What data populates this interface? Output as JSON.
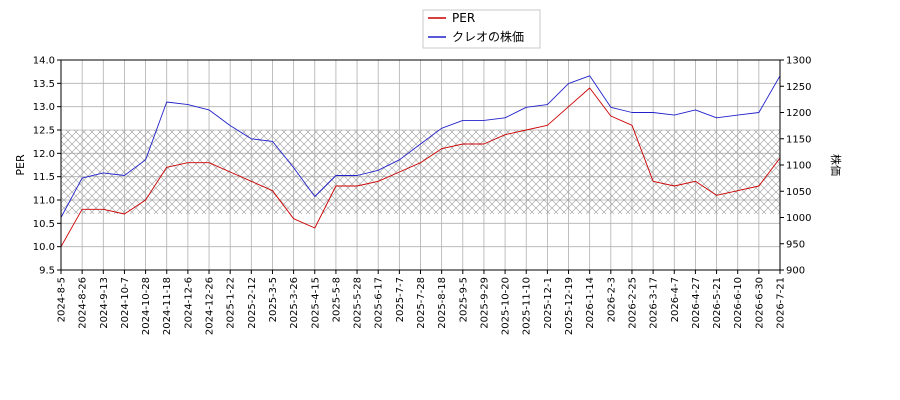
{
  "chart_data": {
    "type": "line",
    "title": "",
    "legend": {
      "placement": "top-center",
      "entries": [
        "PER",
        "クレオの株価"
      ]
    },
    "ylabel_left": "PER",
    "ylabel_right": "株価",
    "ylim_left": [
      9.5,
      14.0
    ],
    "ylim_right": [
      900,
      1300
    ],
    "yticks_left": [
      "9.5",
      "10.0",
      "10.5",
      "11.0",
      "11.5",
      "12.0",
      "12.5",
      "13.0",
      "13.5",
      "14.0"
    ],
    "yticks_right": [
      "900",
      "950",
      "1000",
      "1050",
      "1100",
      "1150",
      "1200",
      "1250",
      "1300"
    ],
    "x_ticks": [
      "2024-8-5",
      "2024-8-26",
      "2024-9-13",
      "2024-10-7",
      "2024-10-28",
      "2024-11-18",
      "2024-12-6",
      "2024-12-26",
      "2025-1-22",
      "2025-2-12",
      "2025-3-5",
      "2025-3-26",
      "2025-4-15",
      "2025-5-8",
      "2025-5-28",
      "2025-6-17",
      "2025-7-7",
      "2025-7-28",
      "2025-8-18",
      "2025-9-5",
      "2025-9-29",
      "2025-10-20",
      "2025-11-10",
      "2025-12-1",
      "2025-12-19",
      "2026-1-14",
      "2026-2-3",
      "2026-2-25",
      "2026-3-17",
      "2026-4-7",
      "2026-4-27",
      "2026-5-21",
      "2026-6-10",
      "2026-6-30",
      "2026-7-21"
    ],
    "band": {
      "axis": "left",
      "range": [
        10.7,
        12.5
      ],
      "pattern": "crosshatch"
    },
    "grid": true,
    "colors": {
      "PER": "#cc0000",
      "price": "#2222cc",
      "grid": "#b0b0b0",
      "band": "#9a9a9a"
    },
    "series": [
      {
        "name": "PER",
        "axis": "left",
        "x": [
          0,
          1,
          2,
          3,
          4,
          5,
          6,
          7,
          8,
          9,
          10,
          11,
          12,
          13,
          14,
          15,
          16,
          17,
          18,
          19,
          20,
          21,
          22,
          23,
          24,
          25,
          26,
          27,
          28,
          29,
          30,
          31,
          32,
          33,
          34
        ],
        "values": [
          10.0,
          10.8,
          10.8,
          10.7,
          11.0,
          11.7,
          11.8,
          11.8,
          11.6,
          11.4,
          11.2,
          10.6,
          10.4,
          11.3,
          11.3,
          11.4,
          11.6,
          11.8,
          12.1,
          12.2,
          12.2,
          12.4,
          12.5,
          12.6,
          13.0,
          13.4,
          12.8,
          12.6,
          11.4,
          11.3,
          11.4,
          11.1,
          11.2,
          11.3,
          11.9
        ]
      },
      {
        "name": "クレオの株価",
        "axis": "right",
        "x": [
          0,
          1,
          2,
          3,
          4,
          5,
          6,
          7,
          8,
          9,
          10,
          11,
          12,
          13,
          14,
          15,
          16,
          17,
          18,
          19,
          20,
          21,
          22,
          23,
          24,
          25,
          26,
          27,
          28,
          29,
          30,
          31,
          32,
          33,
          34
        ],
        "values": [
          1000,
          1075,
          1085,
          1080,
          1110,
          1220,
          1215,
          1205,
          1175,
          1150,
          1145,
          1095,
          1040,
          1080,
          1080,
          1090,
          1110,
          1140,
          1170,
          1185,
          1185,
          1190,
          1210,
          1215,
          1255,
          1270,
          1210,
          1200,
          1200,
          1195,
          1205,
          1190,
          1195,
          1200,
          1270
        ]
      }
    ]
  }
}
